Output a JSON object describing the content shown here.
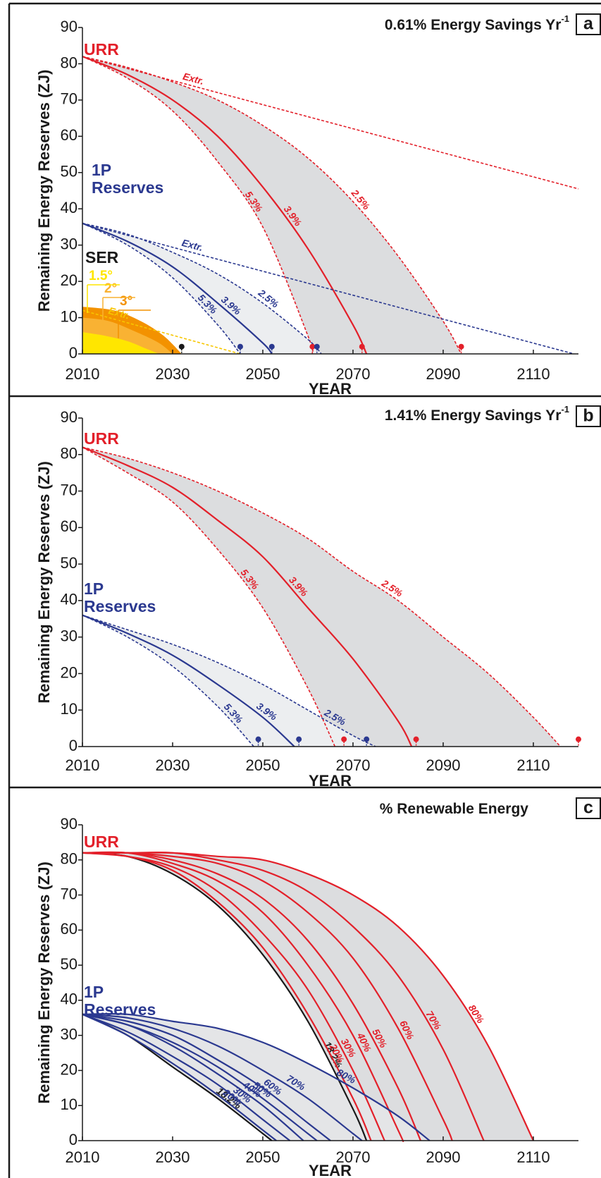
{
  "chart_data": [
    {
      "type": "line",
      "title": "0.61% Energy Savings Yr",
      "title_superscript": "-1",
      "panel_letter": "a",
      "x_label": "YEAR",
      "y_label": "Remaining Energy Reserves (ZJ)",
      "xlim": [
        2010,
        2120
      ],
      "ylim": [
        0,
        90
      ],
      "xticks": [
        2010,
        2030,
        2050,
        2070,
        2090,
        2110
      ],
      "yticks": [
        0,
        10,
        20,
        30,
        40,
        50,
        60,
        70,
        80,
        90
      ],
      "group_labels": [
        {
          "lines": [
            "URR"
          ],
          "color": "#e3202a"
        },
        {
          "lines": [
            "1P",
            "Reserves"
          ],
          "color": "#2b3990"
        },
        {
          "lines": [
            "SER"
          ],
          "color": "#1a1a1a"
        }
      ],
      "series": [
        {
          "name": "Extr.",
          "color": "#e3202a",
          "dash": true,
          "x": [
            2010,
            2120
          ],
          "values": [
            82,
            45.5
          ]
        },
        {
          "name": "2.5%",
          "color": "#e3202a",
          "dash": true,
          "x": [
            2010,
            2020,
            2030,
            2040,
            2050,
            2060,
            2070,
            2080,
            2090,
            2094
          ],
          "values": [
            82,
            79,
            75,
            70,
            63,
            54,
            42,
            27,
            9,
            0
          ]
        },
        {
          "name": "3.9%",
          "color": "#e3202a",
          "dash": false,
          "x": [
            2010,
            2020,
            2030,
            2040,
            2050,
            2060,
            2070,
            2073
          ],
          "values": [
            82,
            77,
            70,
            60,
            46,
            29,
            8,
            0
          ]
        },
        {
          "name": "5.3%",
          "color": "#e3202a",
          "dash": true,
          "x": [
            2010,
            2020,
            2030,
            2040,
            2050,
            2060,
            2061
          ],
          "values": [
            82,
            76,
            67,
            53,
            35,
            5,
            0
          ]
        },
        {
          "name": "Extr.",
          "color": "#2b3990",
          "dash": true,
          "x": [
            2010,
            2119
          ],
          "values": [
            36,
            0
          ]
        },
        {
          "name": "2.5%",
          "color": "#2b3990",
          "dash": true,
          "x": [
            2010,
            2020,
            2030,
            2040,
            2050,
            2060,
            2063
          ],
          "values": [
            36,
            33,
            28,
            22,
            14,
            4,
            0
          ]
        },
        {
          "name": "3.9%",
          "color": "#2b3990",
          "dash": false,
          "x": [
            2010,
            2020,
            2030,
            2040,
            2050,
            2052
          ],
          "values": [
            36,
            31,
            24,
            14,
            3,
            0
          ]
        },
        {
          "name": "5.3%",
          "color": "#2b3990",
          "dash": true,
          "x": [
            2010,
            2020,
            2030,
            2040,
            2045
          ],
          "values": [
            36,
            30,
            21,
            8,
            0
          ]
        },
        {
          "name": "3°",
          "color": "#f39200",
          "style": "area",
          "x": [
            2010,
            2017,
            2023,
            2028,
            2032
          ],
          "values": [
            13,
            12,
            9,
            5,
            0
          ]
        },
        {
          "name": "2°",
          "color": "#f9b233",
          "style": "area",
          "x": [
            2010,
            2016,
            2022,
            2027,
            2030
          ],
          "values": [
            10,
            9,
            6,
            3,
            0
          ]
        },
        {
          "name": "1.5°",
          "color": "#ffe600",
          "style": "area",
          "x": [
            2010,
            2015,
            2020,
            2024,
            2027
          ],
          "values": [
            6,
            5,
            3.5,
            1.5,
            0
          ]
        },
        {
          "name": "Extr.",
          "color": "#f7c600",
          "dash": true,
          "x": [
            2010,
            2045
          ],
          "values": [
            12,
            0
          ]
        }
      ],
      "bands": [
        {
          "between": [
            3,
            1
          ],
          "color": "#dcdddf"
        },
        {
          "between": [
            7,
            5
          ],
          "color": "#eceef0"
        }
      ],
      "markers": {
        "x": [
          2032,
          2045,
          2052,
          2061,
          2062,
          2072,
          2094
        ],
        "values": [
          2,
          2,
          2,
          2,
          2,
          2,
          2
        ],
        "colors": [
          "#1a1a1a",
          "#2b3990",
          "#2b3990",
          "#e3202a",
          "#2b3990",
          "#e3202a",
          "#e3202a"
        ]
      }
    },
    {
      "type": "line",
      "title": "1.41% Energy Savings Yr",
      "title_superscript": "-1",
      "panel_letter": "b",
      "x_label": "YEAR",
      "y_label": "Remaining Energy Reserves (ZJ)",
      "xlim": [
        2010,
        2120
      ],
      "ylim": [
        0,
        90
      ],
      "xticks": [
        2010,
        2030,
        2050,
        2070,
        2090,
        2110
      ],
      "yticks": [
        0,
        10,
        20,
        30,
        40,
        50,
        60,
        70,
        80,
        90
      ],
      "group_labels": [
        {
          "lines": [
            "URR"
          ],
          "color": "#e3202a"
        },
        {
          "lines": [
            "1P",
            "Reserves"
          ],
          "color": "#2b3990"
        }
      ],
      "series": [
        {
          "name": "2.5%",
          "color": "#e3202a",
          "dash": true,
          "x": [
            2010,
            2020,
            2030,
            2040,
            2050,
            2060,
            2070,
            2080,
            2090,
            2100,
            2110,
            2116
          ],
          "values": [
            82,
            79,
            75,
            70,
            64,
            57,
            48,
            40,
            30,
            20,
            8,
            0
          ]
        },
        {
          "name": "3.9%",
          "color": "#e3202a",
          "dash": false,
          "x": [
            2010,
            2020,
            2030,
            2040,
            2050,
            2060,
            2070,
            2080,
            2083
          ],
          "values": [
            82,
            77,
            71,
            62,
            52,
            38,
            24,
            7,
            0
          ]
        },
        {
          "name": "5.3%",
          "color": "#e3202a",
          "dash": true,
          "x": [
            2010,
            2020,
            2030,
            2040,
            2050,
            2060,
            2066
          ],
          "values": [
            82,
            75,
            67,
            54,
            38,
            16,
            0
          ]
        },
        {
          "name": "2.5%",
          "color": "#2b3990",
          "dash": true,
          "x": [
            2010,
            2020,
            2030,
            2040,
            2050,
            2060,
            2070,
            2075
          ],
          "values": [
            36,
            32,
            28,
            23,
            17,
            10,
            3,
            0
          ]
        },
        {
          "name": "3.9%",
          "color": "#2b3990",
          "dash": false,
          "x": [
            2010,
            2020,
            2030,
            2040,
            2050,
            2057
          ],
          "values": [
            36,
            31,
            25,
            17,
            8,
            0
          ]
        },
        {
          "name": "5.3%",
          "color": "#2b3990",
          "dash": true,
          "x": [
            2010,
            2020,
            2030,
            2040,
            2048
          ],
          "values": [
            36,
            30,
            22,
            11,
            0
          ]
        }
      ],
      "bands": [
        {
          "between": [
            2,
            0
          ],
          "color": "#dcdddf"
        },
        {
          "between": [
            5,
            3
          ],
          "color": "#eceef0"
        }
      ],
      "markers": {
        "x": [
          2049,
          2058,
          2068,
          2073,
          2084,
          2120
        ],
        "values": [
          2,
          2,
          2,
          2,
          2,
          2
        ],
        "colors": [
          "#2b3990",
          "#2b3990",
          "#e3202a",
          "#2b3990",
          "#e3202a",
          "#e3202a"
        ]
      }
    },
    {
      "type": "line",
      "title": "% Renewable Energy",
      "panel_letter": "c",
      "x_label": "YEAR",
      "y_label": "Remaining Energy Reserves (ZJ)",
      "xlim": [
        2010,
        2120
      ],
      "ylim": [
        0,
        90
      ],
      "xticks": [
        2010,
        2030,
        2050,
        2070,
        2090,
        2110
      ],
      "yticks": [
        0,
        10,
        20,
        30,
        40,
        50,
        60,
        70,
        80,
        90
      ],
      "group_labels": [
        {
          "lines": [
            "URR"
          ],
          "color": "#e3202a"
        },
        {
          "lines": [
            "1P",
            "Reserves"
          ],
          "color": "#2b3990"
        }
      ],
      "series": [
        {
          "name": "18.2%",
          "color": "#1a1a1a",
          "dash": false,
          "x": [
            2010,
            2020,
            2030,
            2040,
            2050,
            2060,
            2070,
            2073
          ],
          "values": [
            82,
            81,
            76,
            67,
            53,
            34,
            9,
            0
          ]
        },
        {
          "name": "20%",
          "color": "#e3202a",
          "dash": false,
          "x": [
            2010,
            2020,
            2030,
            2040,
            2050,
            2060,
            2070,
            2074
          ],
          "values": [
            82,
            81,
            77,
            68,
            55,
            36,
            12,
            0
          ]
        },
        {
          "name": "30%",
          "color": "#e3202a",
          "dash": false,
          "x": [
            2010,
            2020,
            2030,
            2040,
            2050,
            2060,
            2070,
            2077
          ],
          "values": [
            82,
            81,
            78,
            71,
            59,
            43,
            20,
            0
          ]
        },
        {
          "name": "40%",
          "color": "#e3202a",
          "dash": false,
          "x": [
            2010,
            2020,
            2030,
            2040,
            2050,
            2060,
            2070,
            2080,
            2081
          ],
          "values": [
            82,
            82,
            79,
            74,
            65,
            50,
            30,
            3,
            0
          ]
        },
        {
          "name": "50%",
          "color": "#e3202a",
          "dash": false,
          "x": [
            2010,
            2020,
            2030,
            2040,
            2050,
            2060,
            2070,
            2080,
            2085
          ],
          "values": [
            82,
            82,
            80,
            76,
            69,
            57,
            39,
            15,
            0
          ]
        },
        {
          "name": "60%",
          "color": "#e3202a",
          "dash": false,
          "x": [
            2010,
            2020,
            2030,
            2040,
            2050,
            2060,
            2070,
            2080,
            2090,
            2092
          ],
          "values": [
            82,
            82,
            81,
            79,
            74,
            65,
            52,
            32,
            6,
            0
          ]
        },
        {
          "name": "70%",
          "color": "#e3202a",
          "dash": false,
          "x": [
            2010,
            2020,
            2030,
            2040,
            2050,
            2060,
            2070,
            2080,
            2090,
            2099
          ],
          "values": [
            82,
            82,
            82,
            80,
            77,
            71,
            61,
            47,
            26,
            0
          ]
        },
        {
          "name": "80%",
          "color": "#e3202a",
          "dash": false,
          "x": [
            2010,
            2020,
            2030,
            2040,
            2050,
            2060,
            2070,
            2080,
            2090,
            2100,
            2110
          ],
          "values": [
            82,
            82,
            82,
            81,
            80,
            76,
            70,
            61,
            47,
            27,
            0
          ]
        },
        {
          "name": "18.2%",
          "color": "#1a1a1a",
          "dash": false,
          "x": [
            2010,
            2020,
            2030,
            2040,
            2050,
            2052
          ],
          "values": [
            36,
            30,
            21,
            12,
            2,
            0
          ]
        },
        {
          "name": "20%",
          "color": "#2b3990",
          "dash": false,
          "x": [
            2010,
            2020,
            2030,
            2040,
            2050,
            2053
          ],
          "values": [
            36,
            30,
            22,
            13,
            3,
            0
          ]
        },
        {
          "name": "30%",
          "color": "#2b3990",
          "dash": false,
          "x": [
            2010,
            2020,
            2030,
            2040,
            2050,
            2056
          ],
          "values": [
            36,
            31,
            24,
            16,
            6,
            0
          ]
        },
        {
          "name": "40%",
          "color": "#2b3990",
          "dash": false,
          "x": [
            2010,
            2020,
            2030,
            2040,
            2050,
            2059
          ],
          "values": [
            36,
            33,
            27,
            19,
            10,
            0
          ]
        },
        {
          "name": "50%",
          "color": "#2b3990",
          "dash": false,
          "x": [
            2010,
            2020,
            2030,
            2040,
            2050,
            2060,
            2062
          ],
          "values": [
            36,
            33,
            28,
            21,
            12,
            2,
            0
          ]
        },
        {
          "name": "60%",
          "color": "#2b3990",
          "dash": false,
          "x": [
            2010,
            2020,
            2030,
            2040,
            2050,
            2060,
            2065
          ],
          "values": [
            36,
            34,
            30,
            23,
            15,
            5,
            0
          ]
        },
        {
          "name": "70%",
          "color": "#2b3990",
          "dash": false,
          "x": [
            2010,
            2020,
            2030,
            2040,
            2050,
            2060,
            2070,
            2072
          ],
          "values": [
            36,
            35,
            32,
            27,
            20,
            12,
            2,
            0
          ]
        },
        {
          "name": "80%",
          "color": "#2b3990",
          "dash": false,
          "x": [
            2010,
            2020,
            2030,
            2040,
            2050,
            2060,
            2070,
            2080,
            2087
          ],
          "values": [
            36,
            36,
            34,
            32,
            28,
            22,
            15,
            7,
            0
          ]
        }
      ],
      "bands": [
        {
          "between": [
            0,
            7
          ],
          "color": "#dcdddf"
        },
        {
          "between": [
            8,
            15
          ],
          "color": "#e4e5e7"
        }
      ]
    }
  ]
}
